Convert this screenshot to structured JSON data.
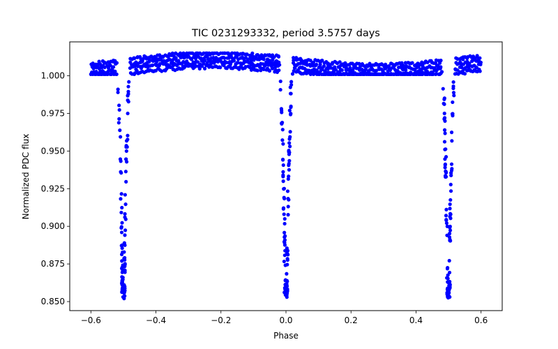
{
  "chart_data": {
    "type": "scatter",
    "title": "TIC 0231293332, period 3.5757 days",
    "xlabel": "Phase",
    "ylabel": "Normalized PDC flux",
    "xlim": [
      -0.665,
      0.665
    ],
    "ylim": [
      0.844,
      1.0225
    ],
    "xticks": [
      {
        "value": -0.6,
        "label": "−0.6"
      },
      {
        "value": -0.4,
        "label": "−0.4"
      },
      {
        "value": -0.2,
        "label": "−0.2"
      },
      {
        "value": 0.0,
        "label": "0.0"
      },
      {
        "value": 0.2,
        "label": "0.2"
      },
      {
        "value": 0.4,
        "label": "0.4"
      },
      {
        "value": 0.6,
        "label": "0.6"
      }
    ],
    "yticks": [
      {
        "value": 0.85,
        "label": "0.850"
      },
      {
        "value": 0.875,
        "label": "0.875"
      },
      {
        "value": 0.9,
        "label": "0.900"
      },
      {
        "value": 0.925,
        "label": "0.925"
      },
      {
        "value": 0.95,
        "label": "0.950"
      },
      {
        "value": 0.975,
        "label": "0.975"
      },
      {
        "value": 1.0,
        "label": "1.000"
      }
    ],
    "grid": false,
    "series": [
      {
        "name": "PDC flux",
        "color": "#0000ff",
        "marker": "circle",
        "x_range": [
          -0.6,
          0.6
        ],
        "eclipse_centers": [
          -0.5,
          0.0,
          0.5
        ],
        "eclipse_depth_min": 0.852,
        "eclipse_half_width": 0.02,
        "out_of_eclipse_range": [
          1.001,
          1.015
        ]
      }
    ]
  }
}
